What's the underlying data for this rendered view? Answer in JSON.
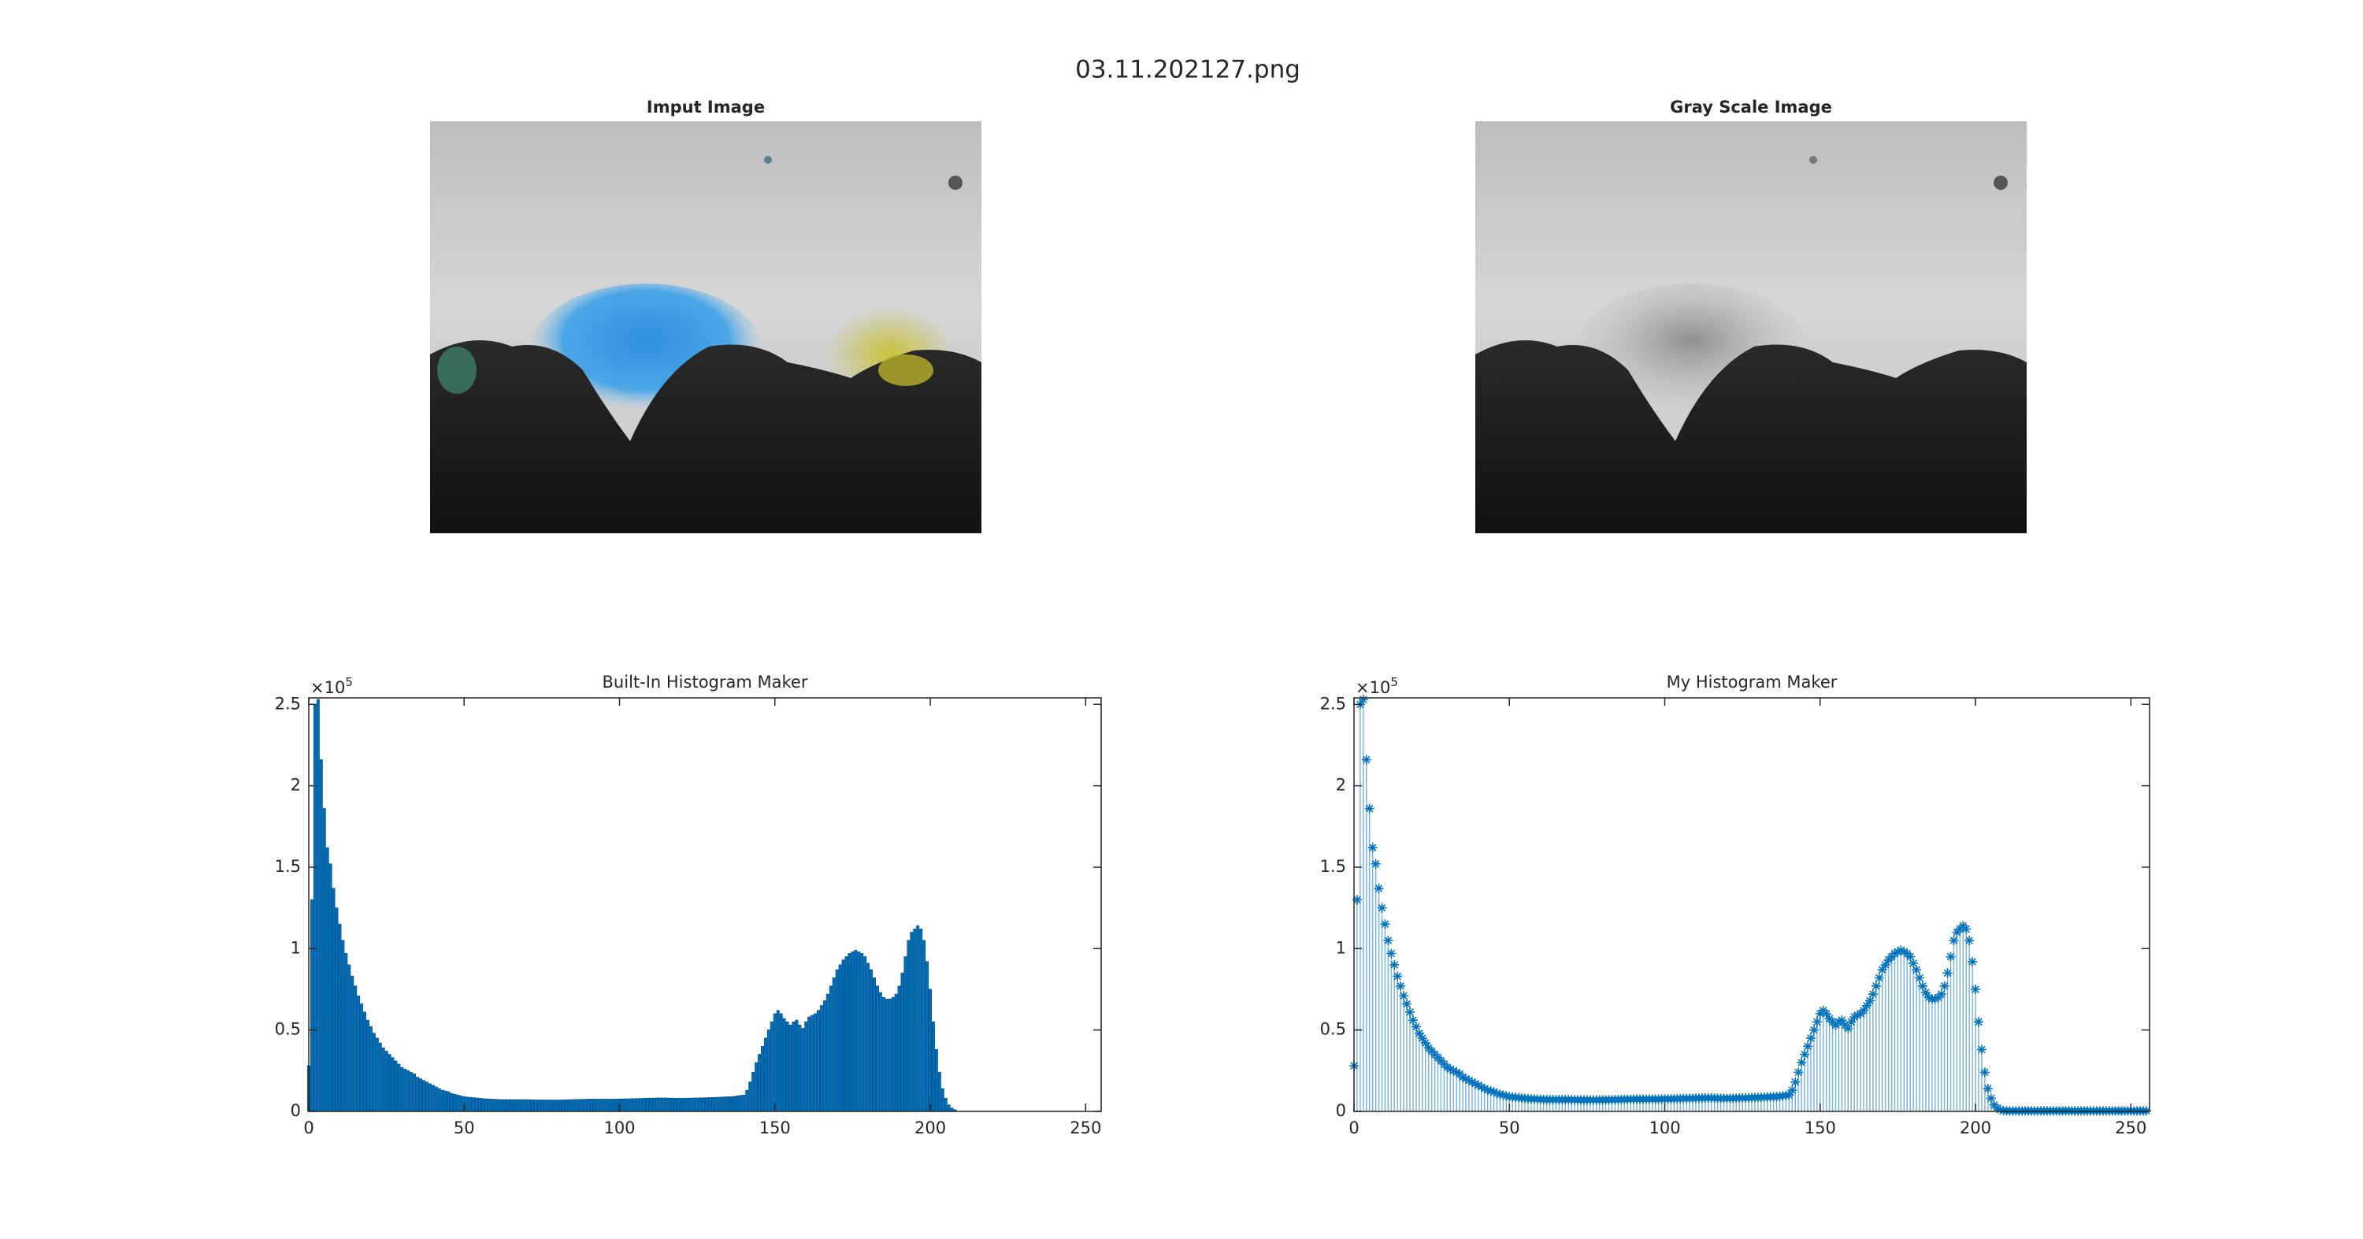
{
  "title": "03.11.202127.png",
  "images": [
    {
      "title": "Imput Image"
    },
    {
      "title": "Gray Scale Image"
    }
  ],
  "chart_data": [
    {
      "type": "bar",
      "title": "Built-In Histogram Maker",
      "color": "#0072bd",
      "y_multiplier": {
        "base": "×10",
        "exponent": "5"
      },
      "xlim": [
        0,
        255
      ],
      "xticks": [
        0,
        50,
        100,
        150,
        200,
        250
      ],
      "ylim": [
        0,
        2.54
      ],
      "yticks": [
        0,
        0.5,
        1,
        1.5,
        2,
        2.5
      ],
      "x": [
        0,
        1,
        2,
        3,
        4,
        5,
        6,
        7,
        8,
        9,
        10,
        11,
        12,
        13,
        14,
        15,
        16,
        17,
        18,
        19,
        20,
        21,
        22,
        23,
        24,
        25,
        26,
        27,
        28,
        29,
        30,
        31,
        32,
        33,
        34,
        35,
        36,
        37,
        38,
        39,
        40,
        41,
        42,
        43,
        44,
        45,
        46,
        47,
        48,
        49,
        50,
        51,
        52,
        53,
        54,
        55,
        56,
        57,
        58,
        59,
        60,
        61,
        62,
        63,
        64,
        65,
        66,
        67,
        68,
        69,
        70,
        71,
        72,
        73,
        74,
        75,
        76,
        77,
        78,
        79,
        80,
        81,
        82,
        83,
        84,
        85,
        86,
        87,
        88,
        89,
        90,
        91,
        92,
        93,
        94,
        95,
        96,
        97,
        98,
        99,
        100,
        101,
        102,
        103,
        104,
        105,
        106,
        107,
        108,
        109,
        110,
        111,
        112,
        113,
        114,
        115,
        116,
        117,
        118,
        119,
        120,
        121,
        122,
        123,
        124,
        125,
        126,
        127,
        128,
        129,
        130,
        131,
        132,
        133,
        134,
        135,
        136,
        137,
        138,
        139,
        140,
        141,
        142,
        143,
        144,
        145,
        146,
        147,
        148,
        149,
        150,
        151,
        152,
        153,
        154,
        155,
        156,
        157,
        158,
        159,
        160,
        161,
        162,
        163,
        164,
        165,
        166,
        167,
        168,
        169,
        170,
        171,
        172,
        173,
        174,
        175,
        176,
        177,
        178,
        179,
        180,
        181,
        182,
        183,
        184,
        185,
        186,
        187,
        188,
        189,
        190,
        191,
        192,
        193,
        194,
        195,
        196,
        197,
        198,
        199,
        200,
        201,
        202,
        203,
        204,
        205,
        206,
        207,
        208,
        209,
        210,
        211,
        212,
        213,
        214,
        215,
        216,
        217,
        218,
        219,
        220,
        221,
        222,
        223,
        224,
        225,
        226,
        227,
        228,
        229,
        230,
        231,
        232,
        233,
        234,
        235,
        236,
        237,
        238,
        239,
        240,
        241,
        242,
        243,
        244,
        245,
        246,
        247,
        248,
        249,
        250,
        251,
        252,
        253,
        254,
        255
      ],
      "values": [
        0.28,
        1.3,
        2.5,
        2.53,
        2.16,
        1.86,
        1.62,
        1.52,
        1.37,
        1.25,
        1.15,
        1.05,
        0.97,
        0.9,
        0.83,
        0.77,
        0.71,
        0.66,
        0.61,
        0.56,
        0.52,
        0.48,
        0.45,
        0.42,
        0.39,
        0.37,
        0.35,
        0.33,
        0.31,
        0.29,
        0.27,
        0.26,
        0.25,
        0.24,
        0.23,
        0.21,
        0.2,
        0.19,
        0.18,
        0.17,
        0.16,
        0.15,
        0.14,
        0.13,
        0.125,
        0.12,
        0.11,
        0.105,
        0.1,
        0.095,
        0.09,
        0.088,
        0.086,
        0.084,
        0.082,
        0.08,
        0.078,
        0.077,
        0.076,
        0.075,
        0.074,
        0.073,
        0.072,
        0.072,
        0.072,
        0.072,
        0.072,
        0.072,
        0.072,
        0.072,
        0.072,
        0.071,
        0.071,
        0.07,
        0.07,
        0.07,
        0.07,
        0.07,
        0.07,
        0.07,
        0.07,
        0.07,
        0.071,
        0.071,
        0.072,
        0.072,
        0.073,
        0.073,
        0.074,
        0.074,
        0.075,
        0.075,
        0.075,
        0.075,
        0.075,
        0.075,
        0.075,
        0.075,
        0.075,
        0.075,
        0.076,
        0.076,
        0.077,
        0.077,
        0.078,
        0.078,
        0.079,
        0.079,
        0.08,
        0.08,
        0.081,
        0.081,
        0.082,
        0.082,
        0.082,
        0.082,
        0.081,
        0.081,
        0.08,
        0.08,
        0.08,
        0.08,
        0.081,
        0.081,
        0.082,
        0.082,
        0.083,
        0.083,
        0.084,
        0.085,
        0.085,
        0.086,
        0.087,
        0.088,
        0.089,
        0.09,
        0.09,
        0.092,
        0.095,
        0.098,
        0.1,
        0.13,
        0.18,
        0.24,
        0.3,
        0.35,
        0.4,
        0.45,
        0.5,
        0.55,
        0.6,
        0.62,
        0.6,
        0.57,
        0.55,
        0.53,
        0.55,
        0.56,
        0.53,
        0.51,
        0.55,
        0.58,
        0.59,
        0.6,
        0.62,
        0.65,
        0.68,
        0.72,
        0.77,
        0.82,
        0.87,
        0.9,
        0.93,
        0.95,
        0.97,
        0.98,
        0.99,
        0.98,
        0.97,
        0.95,
        0.91,
        0.87,
        0.82,
        0.77,
        0.73,
        0.7,
        0.69,
        0.69,
        0.7,
        0.72,
        0.77,
        0.85,
        0.95,
        1.05,
        1.1,
        1.12,
        1.14,
        1.12,
        1.05,
        0.92,
        0.75,
        0.55,
        0.38,
        0.24,
        0.14,
        0.08,
        0.04,
        0.02,
        0.01,
        0,
        0,
        0,
        0,
        0,
        0,
        0,
        0,
        0,
        0,
        0,
        0,
        0,
        0,
        0,
        0,
        0,
        0,
        0,
        0,
        0,
        0,
        0,
        0,
        0,
        0,
        0,
        0,
        0,
        0,
        0,
        0,
        0,
        0,
        0,
        0,
        0,
        0,
        0,
        0,
        0,
        0,
        0,
        0,
        0,
        0,
        0
      ]
    },
    {
      "type": "stem",
      "title": "My Histogram Maker",
      "color": "#0072bd",
      "y_multiplier": {
        "base": "×10",
        "exponent": "5"
      },
      "xlim": [
        0,
        256
      ],
      "xticks": [
        0,
        50,
        100,
        150,
        200,
        250
      ],
      "ylim": [
        0,
        2.54
      ],
      "yticks": [
        0,
        0.5,
        1,
        1.5,
        2,
        2.5
      ],
      "x": [
        0,
        1,
        2,
        3,
        4,
        5,
        6,
        7,
        8,
        9,
        10,
        11,
        12,
        13,
        14,
        15,
        16,
        17,
        18,
        19,
        20,
        21,
        22,
        23,
        24,
        25,
        26,
        27,
        28,
        29,
        30,
        31,
        32,
        33,
        34,
        35,
        36,
        37,
        38,
        39,
        40,
        41,
        42,
        43,
        44,
        45,
        46,
        47,
        48,
        49,
        50,
        51,
        52,
        53,
        54,
        55,
        56,
        57,
        58,
        59,
        60,
        61,
        62,
        63,
        64,
        65,
        66,
        67,
        68,
        69,
        70,
        71,
        72,
        73,
        74,
        75,
        76,
        77,
        78,
        79,
        80,
        81,
        82,
        83,
        84,
        85,
        86,
        87,
        88,
        89,
        90,
        91,
        92,
        93,
        94,
        95,
        96,
        97,
        98,
        99,
        100,
        101,
        102,
        103,
        104,
        105,
        106,
        107,
        108,
        109,
        110,
        111,
        112,
        113,
        114,
        115,
        116,
        117,
        118,
        119,
        120,
        121,
        122,
        123,
        124,
        125,
        126,
        127,
        128,
        129,
        130,
        131,
        132,
        133,
        134,
        135,
        136,
        137,
        138,
        139,
        140,
        141,
        142,
        143,
        144,
        145,
        146,
        147,
        148,
        149,
        150,
        151,
        152,
        153,
        154,
        155,
        156,
        157,
        158,
        159,
        160,
        161,
        162,
        163,
        164,
        165,
        166,
        167,
        168,
        169,
        170,
        171,
        172,
        173,
        174,
        175,
        176,
        177,
        178,
        179,
        180,
        181,
        182,
        183,
        184,
        185,
        186,
        187,
        188,
        189,
        190,
        191,
        192,
        193,
        194,
        195,
        196,
        197,
        198,
        199,
        200,
        201,
        202,
        203,
        204,
        205,
        206,
        207,
        208,
        209,
        210,
        211,
        212,
        213,
        214,
        215,
        216,
        217,
        218,
        219,
        220,
        221,
        222,
        223,
        224,
        225,
        226,
        227,
        228,
        229,
        230,
        231,
        232,
        233,
        234,
        235,
        236,
        237,
        238,
        239,
        240,
        241,
        242,
        243,
        244,
        245,
        246,
        247,
        248,
        249,
        250,
        251,
        252,
        253,
        254,
        255
      ],
      "values": [
        0.28,
        1.3,
        2.5,
        2.53,
        2.16,
        1.86,
        1.62,
        1.52,
        1.37,
        1.25,
        1.15,
        1.05,
        0.97,
        0.9,
        0.83,
        0.77,
        0.71,
        0.66,
        0.61,
        0.56,
        0.52,
        0.48,
        0.45,
        0.42,
        0.39,
        0.37,
        0.35,
        0.33,
        0.31,
        0.29,
        0.27,
        0.26,
        0.25,
        0.24,
        0.23,
        0.21,
        0.2,
        0.19,
        0.18,
        0.17,
        0.16,
        0.15,
        0.14,
        0.13,
        0.125,
        0.12,
        0.11,
        0.105,
        0.1,
        0.095,
        0.09,
        0.088,
        0.086,
        0.084,
        0.082,
        0.08,
        0.078,
        0.077,
        0.076,
        0.075,
        0.074,
        0.073,
        0.072,
        0.072,
        0.072,
        0.072,
        0.072,
        0.072,
        0.072,
        0.072,
        0.072,
        0.071,
        0.071,
        0.07,
        0.07,
        0.07,
        0.07,
        0.07,
        0.07,
        0.07,
        0.07,
        0.07,
        0.071,
        0.071,
        0.072,
        0.072,
        0.073,
        0.073,
        0.074,
        0.074,
        0.075,
        0.075,
        0.075,
        0.075,
        0.075,
        0.075,
        0.075,
        0.075,
        0.075,
        0.075,
        0.076,
        0.076,
        0.077,
        0.077,
        0.078,
        0.078,
        0.079,
        0.079,
        0.08,
        0.08,
        0.081,
        0.081,
        0.082,
        0.082,
        0.082,
        0.082,
        0.081,
        0.081,
        0.08,
        0.08,
        0.08,
        0.08,
        0.081,
        0.081,
        0.082,
        0.082,
        0.083,
        0.083,
        0.084,
        0.085,
        0.085,
        0.086,
        0.087,
        0.088,
        0.089,
        0.09,
        0.09,
        0.092,
        0.095,
        0.098,
        0.1,
        0.13,
        0.18,
        0.24,
        0.3,
        0.35,
        0.4,
        0.45,
        0.5,
        0.55,
        0.6,
        0.62,
        0.6,
        0.57,
        0.55,
        0.53,
        0.55,
        0.56,
        0.53,
        0.51,
        0.55,
        0.58,
        0.59,
        0.6,
        0.62,
        0.65,
        0.68,
        0.72,
        0.77,
        0.82,
        0.87,
        0.9,
        0.93,
        0.95,
        0.97,
        0.98,
        0.99,
        0.98,
        0.97,
        0.95,
        0.91,
        0.87,
        0.82,
        0.77,
        0.73,
        0.7,
        0.69,
        0.69,
        0.7,
        0.72,
        0.77,
        0.85,
        0.95,
        1.05,
        1.1,
        1.12,
        1.14,
        1.12,
        1.05,
        0.92,
        0.75,
        0.55,
        0.38,
        0.24,
        0.14,
        0.08,
        0.04,
        0.02,
        0.01,
        0.005,
        0.003,
        0.003,
        0.003,
        0.003,
        0.003,
        0.003,
        0.003,
        0.003,
        0.003,
        0.003,
        0.003,
        0.003,
        0.003,
        0.003,
        0.003,
        0.003,
        0.003,
        0.003,
        0.003,
        0.003,
        0.003,
        0.003,
        0.003,
        0.003,
        0.003,
        0.003,
        0.003,
        0.003,
        0.003,
        0.003,
        0.003,
        0.003,
        0.003,
        0.003,
        0.003,
        0.003,
        0.003,
        0.003,
        0.003,
        0.003,
        0.003,
        0.003,
        0.003,
        0.003,
        0.003,
        0.003
      ]
    }
  ]
}
